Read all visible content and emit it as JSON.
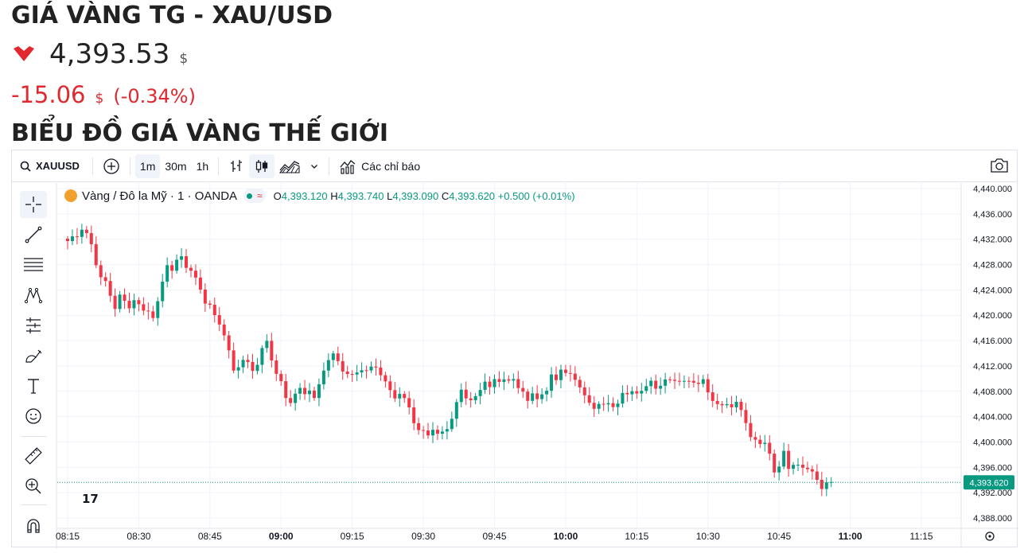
{
  "header": {
    "title": "GIÁ VÀNG TG - XAU/USD",
    "price": "4,393.53",
    "price_unit": "$",
    "change": "-15.06",
    "change_unit": "$",
    "change_pct": "(-0.34%)",
    "section_title": "BIỂU ĐỒ GIÁ VÀNG THẾ GIỚI",
    "down_color": "#e0282e"
  },
  "toolbar": {
    "symbol": "XAUUSD",
    "intervals": [
      "1m",
      "30m",
      "1h"
    ],
    "active_interval": "1m",
    "indicators_label": "Các chỉ báo"
  },
  "legend": {
    "name": "Vàng / Đô la Mỹ · 1 · OANDA",
    "o_label": "O",
    "o_value": "4,393.120",
    "h_label": "H",
    "h_value": "4,393.740",
    "l_label": "L",
    "l_value": "4,393.090",
    "c_label": "C",
    "c_value": "4,393.620",
    "change": "+0.500 (+0.01%)"
  },
  "tools": [
    "crosshair-icon",
    "trend-line-icon",
    "fib-retracement-icon",
    "pattern-icon",
    "prediction-icon",
    "brush-icon",
    "text-icon",
    "emoji-icon",
    "ruler-icon",
    "zoom-in-icon",
    "magnet-icon"
  ],
  "chart_data": {
    "type": "candlestick",
    "symbol": "XAUUSD",
    "interval": "1m",
    "up_color": "#089981",
    "down_color": "#f23645",
    "ylim": [
      4387,
      4441
    ],
    "yticks": [
      "4,440.000",
      "4,436.000",
      "4,432.000",
      "4,428.000",
      "4,424.000",
      "4,420.000",
      "4,416.000",
      "4,412.000",
      "4,408.000",
      "4,404.000",
      "4,400.000",
      "4,396.000",
      "4,392.000",
      "4,388.000"
    ],
    "ytick_values": [
      4440,
      4436,
      4432,
      4428,
      4424,
      4420,
      4416,
      4412,
      4408,
      4404,
      4400,
      4396,
      4392,
      4388
    ],
    "xticks": [
      "08:15",
      "08:30",
      "08:45",
      "09:00",
      "09:15",
      "09:30",
      "09:45",
      "10:00",
      "10:15",
      "10:30",
      "10:45",
      "11:00",
      "11:15"
    ],
    "xtick_minutes": [
      0,
      15,
      30,
      45,
      60,
      75,
      90,
      105,
      120,
      135,
      150,
      165,
      180
    ],
    "bold_xticks": [
      "09:00",
      "10:00",
      "11:00"
    ],
    "last_price": "4,393.620",
    "last_value": 4393.62,
    "close_path": [
      [
        0,
        4431.5
      ],
      [
        2,
        4432.5
      ],
      [
        3,
        4434
      ],
      [
        4,
        4433
      ],
      [
        5,
        4431
      ],
      [
        6,
        4428
      ],
      [
        7,
        4426
      ],
      [
        8,
        4425
      ],
      [
        9,
        4423
      ],
      [
        10,
        4421.5
      ],
      [
        11,
        4423.5
      ],
      [
        12,
        4422
      ],
      [
        13,
        4421
      ],
      [
        14,
        4422.5
      ],
      [
        15,
        4421.5
      ],
      [
        16,
        4420.5
      ],
      [
        17,
        4421
      ],
      [
        18,
        4420
      ],
      [
        19,
        4422
      ],
      [
        20,
        4425
      ],
      [
        21,
        4428
      ],
      [
        22,
        4427
      ],
      [
        23,
        4428.5
      ],
      [
        24,
        4429.5
      ],
      [
        25,
        4428
      ],
      [
        26,
        4427
      ],
      [
        27,
        4425.5
      ],
      [
        28,
        4424
      ],
      [
        29,
        4422
      ],
      [
        30,
        4421.5
      ],
      [
        31,
        4420
      ],
      [
        32,
        4419
      ],
      [
        33,
        4417
      ],
      [
        34,
        4414
      ],
      [
        35,
        4411
      ],
      [
        36,
        4412
      ],
      [
        37,
        4413
      ],
      [
        38,
        4412.5
      ],
      [
        39,
        4411.5
      ],
      [
        40,
        4412.5
      ],
      [
        41,
        4414.5
      ],
      [
        42,
        4415.5
      ],
      [
        43,
        4413
      ],
      [
        44,
        4411
      ],
      [
        45,
        4409.5
      ],
      [
        46,
        4407
      ],
      [
        47,
        4406.5
      ],
      [
        48,
        4407.5
      ],
      [
        49,
        4408
      ],
      [
        50,
        4407.5
      ],
      [
        51,
        4408.5
      ],
      [
        52,
        4407
      ],
      [
        53,
        4409
      ],
      [
        54,
        4411.5
      ],
      [
        55,
        4413
      ],
      [
        56,
        4413.5
      ],
      [
        57,
        4412.5
      ],
      [
        58,
        4411.5
      ],
      [
        59,
        4411
      ],
      [
        60,
        4410.5
      ],
      [
        61,
        4411
      ],
      [
        62,
        4411.5
      ],
      [
        63,
        4411
      ],
      [
        64,
        4411.5
      ],
      [
        65,
        4412
      ],
      [
        66,
        4411
      ],
      [
        67,
        4409.5
      ],
      [
        68,
        4408
      ],
      [
        69,
        4407
      ],
      [
        70,
        4407.5
      ],
      [
        71,
        4406.5
      ],
      [
        72,
        4405.5
      ],
      [
        73,
        4403.5
      ],
      [
        74,
        4402
      ],
      [
        75,
        4401.5
      ],
      [
        76,
        4401
      ],
      [
        77,
        4402
      ],
      [
        78,
        4401
      ],
      [
        79,
        4401.5
      ],
      [
        80,
        4402.5
      ],
      [
        81,
        4404
      ],
      [
        82,
        4406
      ],
      [
        83,
        4408
      ],
      [
        84,
        4407
      ],
      [
        85,
        4406.5
      ],
      [
        86,
        4407
      ],
      [
        87,
        4408.5
      ],
      [
        88,
        4410
      ],
      [
        89,
        4408.5
      ],
      [
        90,
        4409.5
      ],
      [
        91,
        4409.5
      ],
      [
        92,
        4410
      ],
      [
        93,
        4409.5
      ],
      [
        94,
        4410
      ],
      [
        95,
        4409
      ],
      [
        96,
        4408
      ],
      [
        97,
        4406
      ],
      [
        98,
        4407.5
      ],
      [
        99,
        4407
      ],
      [
        100,
        4407.5
      ],
      [
        101,
        4408
      ],
      [
        102,
        4411
      ],
      [
        103,
        4410
      ],
      [
        104,
        4411
      ],
      [
        105,
        4410.5
      ],
      [
        106,
        4411
      ],
      [
        107,
        4410
      ],
      [
        108,
        4408.5
      ],
      [
        109,
        4407.5
      ],
      [
        110,
        4406.5
      ],
      [
        111,
        4405
      ],
      [
        112,
        4405.5
      ],
      [
        113,
        4406
      ],
      [
        114,
        4406.5
      ],
      [
        115,
        4405.5
      ],
      [
        116,
        4406
      ],
      [
        117,
        4408
      ],
      [
        118,
        4407.5
      ],
      [
        119,
        4407.5
      ],
      [
        120,
        4407.5
      ],
      [
        121,
        4408.5
      ],
      [
        122,
        4409
      ],
      [
        123,
        4409.5
      ],
      [
        124,
        4408.5
      ],
      [
        125,
        4409
      ],
      [
        126,
        4409.5
      ],
      [
        127,
        4409.5
      ],
      [
        128,
        4410
      ],
      [
        129,
        4410
      ],
      [
        130,
        4409.5
      ],
      [
        131,
        4409.5
      ],
      [
        132,
        4409.5
      ],
      [
        133,
        4409
      ],
      [
        134,
        4409.5
      ],
      [
        135,
        4408
      ],
      [
        136,
        4407
      ],
      [
        137,
        4406
      ],
      [
        138,
        4405.5
      ],
      [
        139,
        4406
      ],
      [
        140,
        4405.5
      ],
      [
        141,
        4406
      ],
      [
        142,
        4405
      ],
      [
        143,
        4403.5
      ],
      [
        144,
        4401
      ],
      [
        145,
        4400
      ],
      [
        146,
        4399.5
      ],
      [
        147,
        4400
      ],
      [
        148,
        4398
      ],
      [
        149,
        4395
      ],
      [
        150,
        4396.5
      ],
      [
        151,
        4399
      ],
      [
        152,
        4395.5
      ],
      [
        153,
        4396
      ],
      [
        154,
        4396.5
      ],
      [
        155,
        4396
      ],
      [
        156,
        4395.5
      ],
      [
        157,
        4395.5
      ],
      [
        158,
        4394.5
      ],
      [
        159,
        4392.5
      ],
      [
        160,
        4393.12
      ],
      [
        161,
        4393.62
      ]
    ]
  }
}
